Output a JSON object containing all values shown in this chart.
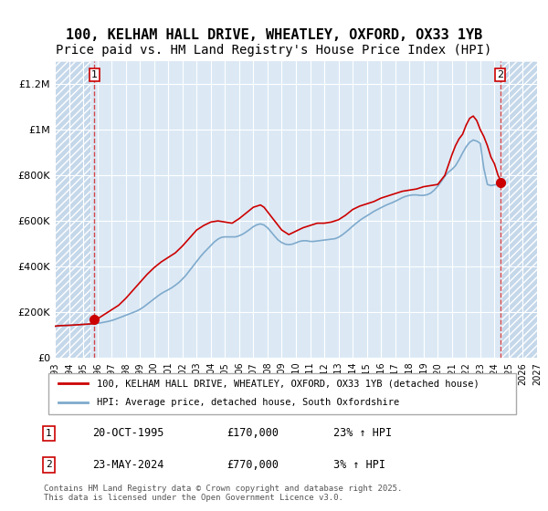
{
  "title": "100, KELHAM HALL DRIVE, WHEATLEY, OXFORD, OX33 1YB",
  "subtitle": "Price paid vs. HM Land Registry's House Price Index (HPI)",
  "title_fontsize": 11,
  "subtitle_fontsize": 10,
  "bg_color": "#dce9f5",
  "hatch_color": "#b0c8e0",
  "grid_color": "#ffffff",
  "ylim": [
    0,
    1300000
  ],
  "xlim_start": 1993.0,
  "xlim_end": 2027.0,
  "yticks": [
    0,
    200000,
    400000,
    600000,
    800000,
    1000000,
    1200000
  ],
  "ytick_labels": [
    "£0",
    "£200K",
    "£400K",
    "£600K",
    "£800K",
    "£1M",
    "£1.2M"
  ],
  "xticks": [
    1993,
    1994,
    1995,
    1996,
    1997,
    1998,
    1999,
    2000,
    2001,
    2002,
    2003,
    2004,
    2005,
    2006,
    2007,
    2008,
    2009,
    2010,
    2011,
    2012,
    2013,
    2014,
    2015,
    2016,
    2017,
    2018,
    2019,
    2020,
    2021,
    2022,
    2023,
    2024,
    2025,
    2026,
    2027
  ],
  "sale1_year": 1995.8,
  "sale1_price": 170000,
  "sale2_year": 2024.4,
  "sale2_price": 770000,
  "red_line_color": "#cc0000",
  "blue_line_color": "#7faacc",
  "marker_color": "#cc0000",
  "marker_box_color": "#cc0000",
  "legend_line1": "100, KELHAM HALL DRIVE, WHEATLEY, OXFORD, OX33 1YB (detached house)",
  "legend_line2": "HPI: Average price, detached house, South Oxfordshire",
  "annotation1_label": "1",
  "annotation1_date": "20-OCT-1995",
  "annotation1_price": "£170,000",
  "annotation1_hpi": "23% ↑ HPI",
  "annotation2_label": "2",
  "annotation2_date": "23-MAY-2024",
  "annotation2_price": "£770,000",
  "annotation2_hpi": "3% ↑ HPI",
  "footer": "Contains HM Land Registry data © Crown copyright and database right 2025.\nThis data is licensed under the Open Government Licence v3.0.",
  "hpi_years": [
    1993.0,
    1993.25,
    1993.5,
    1993.75,
    1994.0,
    1994.25,
    1994.5,
    1994.75,
    1995.0,
    1995.25,
    1995.5,
    1995.75,
    1996.0,
    1996.25,
    1996.5,
    1996.75,
    1997.0,
    1997.25,
    1997.5,
    1997.75,
    1998.0,
    1998.25,
    1998.5,
    1998.75,
    1999.0,
    1999.25,
    1999.5,
    1999.75,
    2000.0,
    2000.25,
    2000.5,
    2000.75,
    2001.0,
    2001.25,
    2001.5,
    2001.75,
    2002.0,
    2002.25,
    2002.5,
    2002.75,
    2003.0,
    2003.25,
    2003.5,
    2003.75,
    2004.0,
    2004.25,
    2004.5,
    2004.75,
    2005.0,
    2005.25,
    2005.5,
    2005.75,
    2006.0,
    2006.25,
    2006.5,
    2006.75,
    2007.0,
    2007.25,
    2007.5,
    2007.75,
    2008.0,
    2008.25,
    2008.5,
    2008.75,
    2009.0,
    2009.25,
    2009.5,
    2009.75,
    2010.0,
    2010.25,
    2010.5,
    2010.75,
    2011.0,
    2011.25,
    2011.5,
    2011.75,
    2012.0,
    2012.25,
    2012.5,
    2012.75,
    2013.0,
    2013.25,
    2013.5,
    2013.75,
    2014.0,
    2014.25,
    2014.5,
    2014.75,
    2015.0,
    2015.25,
    2015.5,
    2015.75,
    2016.0,
    2016.25,
    2016.5,
    2016.75,
    2017.0,
    2017.25,
    2017.5,
    2017.75,
    2018.0,
    2018.25,
    2018.5,
    2018.75,
    2019.0,
    2019.25,
    2019.5,
    2019.75,
    2020.0,
    2020.25,
    2020.5,
    2020.75,
    2021.0,
    2021.25,
    2021.5,
    2021.75,
    2022.0,
    2022.25,
    2022.5,
    2022.75,
    2023.0,
    2023.25,
    2023.5,
    2023.75,
    2024.0,
    2024.25,
    2024.5
  ],
  "hpi_values": [
    138000,
    140000,
    141000,
    141500,
    142000,
    143000,
    144000,
    145000,
    146000,
    147000,
    148000,
    149500,
    151000,
    153000,
    156000,
    159000,
    163000,
    168000,
    174000,
    180000,
    186000,
    192000,
    198000,
    204000,
    212000,
    222000,
    234000,
    246000,
    258000,
    270000,
    281000,
    290000,
    298000,
    307000,
    318000,
    330000,
    345000,
    362000,
    382000,
    402000,
    422000,
    442000,
    460000,
    476000,
    492000,
    508000,
    520000,
    528000,
    530000,
    530000,
    530000,
    530000,
    535000,
    542000,
    552000,
    563000,
    575000,
    583000,
    587000,
    582000,
    570000,
    552000,
    533000,
    516000,
    505000,
    498000,
    496000,
    498000,
    504000,
    510000,
    513000,
    513000,
    510000,
    510000,
    512000,
    514000,
    516000,
    518000,
    520000,
    522000,
    528000,
    538000,
    550000,
    563000,
    577000,
    590000,
    602000,
    613000,
    622000,
    632000,
    642000,
    650000,
    658000,
    666000,
    673000,
    679000,
    686000,
    694000,
    702000,
    708000,
    712000,
    714000,
    714000,
    712000,
    712000,
    715000,
    722000,
    735000,
    752000,
    773000,
    796000,
    814000,
    826000,
    842000,
    868000,
    898000,
    925000,
    945000,
    955000,
    950000,
    940000,
    830000,
    760000,
    755000,
    758000,
    760000,
    762000
  ],
  "red_years": [
    1993.0,
    1993.25,
    1993.5,
    1993.75,
    1994.0,
    1994.25,
    1994.5,
    1994.75,
    1995.0,
    1995.25,
    1995.5,
    1995.75,
    1996.0,
    1996.5,
    1997.0,
    1997.5,
    1998.0,
    1998.5,
    1999.0,
    1999.5,
    2000.0,
    2000.5,
    2001.0,
    2001.5,
    2002.0,
    2002.5,
    2003.0,
    2003.5,
    2004.0,
    2004.5,
    2005.0,
    2005.5,
    2006.0,
    2006.5,
    2007.0,
    2007.5,
    2007.75,
    2008.0,
    2008.5,
    2009.0,
    2009.5,
    2010.0,
    2010.5,
    2011.0,
    2011.5,
    2012.0,
    2012.5,
    2013.0,
    2013.5,
    2014.0,
    2014.5,
    2015.0,
    2015.5,
    2016.0,
    2016.5,
    2017.0,
    2017.5,
    2018.0,
    2018.5,
    2019.0,
    2019.5,
    2020.0,
    2020.5,
    2021.0,
    2021.25,
    2021.5,
    2021.75,
    2022.0,
    2022.25,
    2022.5,
    2022.75,
    2023.0,
    2023.25,
    2023.5,
    2023.75,
    2024.0,
    2024.25,
    2024.5
  ],
  "red_values": [
    138000,
    140000,
    141000,
    141500,
    142000,
    143000,
    144000,
    145000,
    146000,
    147000,
    148000,
    149500,
    170000,
    190000,
    210000,
    230000,
    260000,
    295000,
    330000,
    365000,
    395000,
    420000,
    440000,
    460000,
    490000,
    525000,
    560000,
    580000,
    595000,
    600000,
    595000,
    590000,
    610000,
    635000,
    660000,
    670000,
    660000,
    640000,
    600000,
    560000,
    540000,
    555000,
    570000,
    580000,
    590000,
    590000,
    595000,
    605000,
    625000,
    650000,
    665000,
    675000,
    685000,
    700000,
    710000,
    720000,
    730000,
    735000,
    740000,
    750000,
    755000,
    760000,
    800000,
    890000,
    930000,
    960000,
    980000,
    1020000,
    1050000,
    1060000,
    1040000,
    1000000,
    970000,
    930000,
    880000,
    850000,
    800000,
    770000
  ]
}
